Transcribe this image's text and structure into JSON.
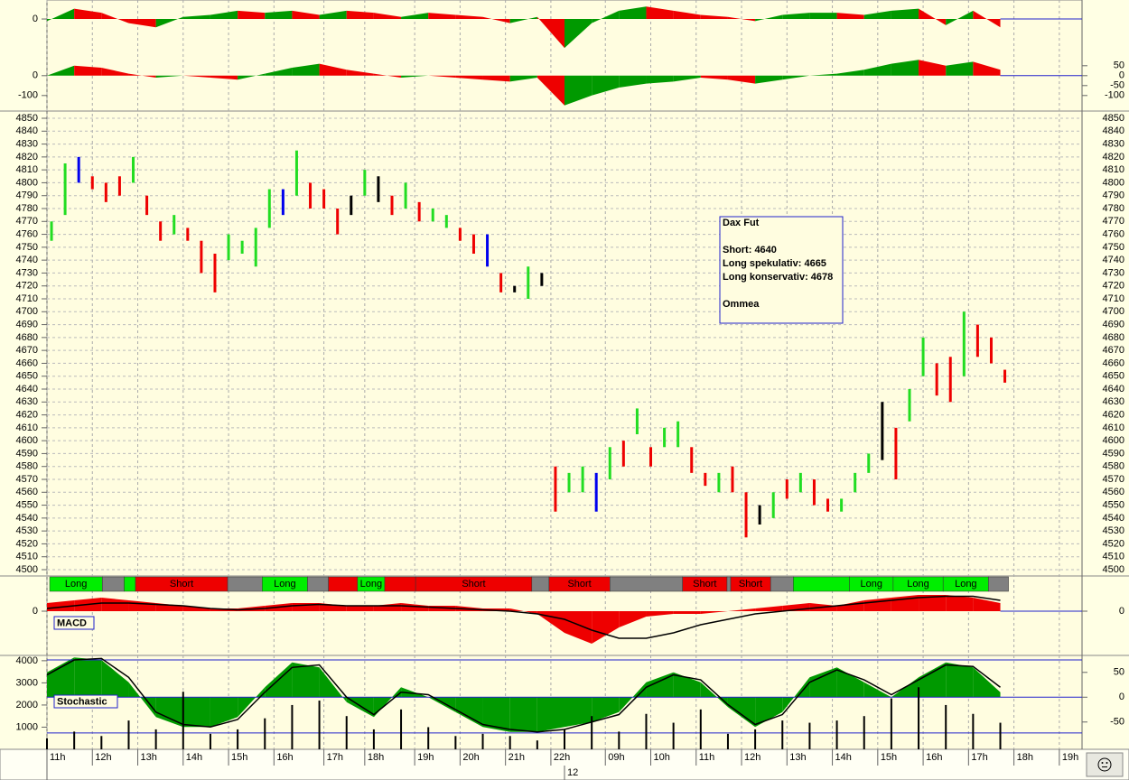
{
  "x_axis": {
    "xlim": [
      0,
      228
    ],
    "xticks": [
      {
        "value": 0,
        "label": "11h"
      },
      {
        "value": 10,
        "label": "12h"
      },
      {
        "value": 20,
        "label": "13h"
      },
      {
        "value": 30,
        "label": "14h"
      },
      {
        "value": 40,
        "label": "15h"
      },
      {
        "value": 50,
        "label": "16h"
      },
      {
        "value": 61,
        "label": "17h"
      },
      {
        "value": 70,
        "label": "18h"
      },
      {
        "value": 81,
        "label": "19h"
      },
      {
        "value": 91,
        "label": "20h"
      },
      {
        "value": 101,
        "label": "21h"
      },
      {
        "value": 111,
        "label": "22h"
      },
      {
        "value": 123,
        "label": "09h"
      },
      {
        "value": 133,
        "label": "10h"
      },
      {
        "value": 143,
        "label": "11h"
      },
      {
        "value": 153,
        "label": "12h"
      },
      {
        "value": 163,
        "label": "13h"
      },
      {
        "value": 173,
        "label": "14h"
      },
      {
        "value": 183,
        "label": "15h"
      },
      {
        "value": 193,
        "label": "16h"
      },
      {
        "value": 203,
        "label": "17h"
      },
      {
        "value": 213,
        "label": "18h"
      },
      {
        "value": 223,
        "label": "19h"
      }
    ],
    "date_ticks": [
      {
        "value": 114,
        "label": "12"
      }
    ],
    "x": [
      0,
      6,
      12,
      18,
      24,
      30,
      36,
      42,
      48,
      54,
      60,
      66,
      72,
      78,
      84,
      90,
      96,
      102,
      108,
      114,
      120,
      126,
      132,
      138,
      144,
      150,
      156,
      162,
      168,
      174,
      180,
      186,
      192,
      198,
      204,
      210
    ]
  },
  "chart_data": [
    {
      "type": "oscillator",
      "ylim": [
        -170,
        70
      ],
      "yticks": [
        0
      ],
      "values": [
        -10,
        50,
        30,
        -20,
        -40,
        10,
        20,
        40,
        30,
        40,
        20,
        40,
        30,
        10,
        30,
        20,
        10,
        -20,
        10,
        -140,
        -20,
        40,
        60,
        40,
        20,
        10,
        -10,
        20,
        30,
        30,
        20,
        40,
        50,
        -30,
        40,
        -40
      ]
    },
    {
      "type": "oscillator",
      "ylim": [
        -160,
        90
      ],
      "yticks": [
        0,
        -100
      ],
      "y2ticks": [
        50,
        0,
        -50,
        -100
      ],
      "values": [
        0,
        50,
        40,
        10,
        -10,
        0,
        -10,
        -20,
        10,
        40,
        60,
        30,
        10,
        -10,
        0,
        -10,
        -20,
        -30,
        -10,
        -150,
        -100,
        -60,
        -40,
        -30,
        -10,
        -20,
        -40,
        -20,
        0,
        10,
        30,
        60,
        80,
        50,
        70,
        30
      ]
    },
    {
      "type": "range-bar",
      "ylim": [
        4500,
        4850
      ],
      "yticks": [
        4500,
        4510,
        4520,
        4530,
        4540,
        4550,
        4560,
        4570,
        4580,
        4590,
        4600,
        4610,
        4620,
        4630,
        4640,
        4650,
        4660,
        4670,
        4680,
        4690,
        4700,
        4710,
        4720,
        4730,
        4740,
        4750,
        4760,
        4770,
        4780,
        4790,
        4800,
        4810,
        4820,
        4830,
        4840,
        4850
      ],
      "x": [
        1,
        4,
        7,
        10,
        13,
        16,
        19,
        22,
        25,
        28,
        31,
        34,
        37,
        40,
        43,
        46,
        49,
        52,
        55,
        58,
        61,
        64,
        67,
        70,
        73,
        76,
        79,
        82,
        85,
        88,
        91,
        94,
        97,
        100,
        103,
        106,
        109,
        112,
        115,
        118,
        121,
        124,
        127,
        130,
        133,
        136,
        139,
        142,
        145,
        148,
        151,
        154,
        157,
        160,
        163,
        166,
        169,
        172,
        175,
        178,
        181,
        184,
        187,
        190,
        193,
        196,
        199,
        202,
        205,
        208,
        211
      ],
      "low": [
        4755,
        4775,
        4800,
        4795,
        4785,
        4790,
        4800,
        4775,
        4755,
        4760,
        4755,
        4730,
        4715,
        4740,
        4745,
        4735,
        4765,
        4775,
        4790,
        4780,
        4780,
        4760,
        4775,
        4790,
        4785,
        4775,
        4780,
        4770,
        4770,
        4765,
        4755,
        4745,
        4735,
        4715,
        4715,
        4710,
        4720,
        4545,
        4560,
        4560,
        4545,
        4570,
        4580,
        4605,
        4580,
        4595,
        4595,
        4575,
        4565,
        4560,
        4560,
        4525,
        4535,
        4540,
        4555,
        4560,
        4550,
        4545,
        4545,
        4560,
        4575,
        4585,
        4570,
        4615,
        4650,
        4635,
        4630,
        4650,
        4665,
        4660,
        4645
      ],
      "high": [
        4770,
        4815,
        4820,
        4805,
        4800,
        4805,
        4820,
        4790,
        4770,
        4775,
        4765,
        4755,
        4745,
        4760,
        4755,
        4765,
        4795,
        4795,
        4825,
        4800,
        4795,
        4780,
        4790,
        4810,
        4805,
        4790,
        4800,
        4785,
        4780,
        4775,
        4765,
        4760,
        4760,
        4730,
        4720,
        4735,
        4730,
        4580,
        4575,
        4580,
        4575,
        4595,
        4600,
        4625,
        4595,
        4610,
        4615,
        4595,
        4575,
        4575,
        4580,
        4560,
        4550,
        4560,
        4570,
        4575,
        4570,
        4555,
        4555,
        4575,
        4590,
        4630,
        4610,
        4640,
        4680,
        4660,
        4665,
        4700,
        4690,
        4680,
        4655
      ],
      "colors": [
        "#22dd22",
        "#22dd22",
        "#0000ee",
        "#ee0000",
        "#ee0000",
        "#ee0000",
        "#22dd22",
        "#ee0000",
        "#ee0000",
        "#22dd22",
        "#ee0000",
        "#ee0000",
        "#ee0000",
        "#22dd22",
        "#22dd22",
        "#22dd22",
        "#22dd22",
        "#0000ee",
        "#22dd22",
        "#ee0000",
        "#ee0000",
        "#ee0000",
        "#000000",
        "#22dd22",
        "#000000",
        "#ee0000",
        "#22dd22",
        "#ee0000",
        "#22dd22",
        "#22dd22",
        "#ee0000",
        "#ee0000",
        "#0000ee",
        "#ee0000",
        "#000000",
        "#22dd22",
        "#000000",
        "#ee0000",
        "#22dd22",
        "#22dd22",
        "#0000ee",
        "#22dd22",
        "#ee0000",
        "#22dd22",
        "#ee0000",
        "#22dd22",
        "#22dd22",
        "#ee0000",
        "#ee0000",
        "#22dd22",
        "#ee0000",
        "#ee0000",
        "#000000",
        "#22dd22",
        "#ee0000",
        "#22dd22",
        "#ee0000",
        "#ee0000",
        "#22dd22",
        "#22dd22",
        "#22dd22",
        "#000000",
        "#ee0000",
        "#22dd22",
        "#22dd22",
        "#ee0000",
        "#ee0000",
        "#22dd22",
        "#ee0000",
        "#ee0000",
        "#ee0000"
      ],
      "annotation": [
        "Dax Fut",
        "Short: 4640",
        "Long spekulativ: 4665",
        "Long konservativ: 4678",
        "Ommea"
      ]
    },
    {
      "type": "signal",
      "segments": [
        {
          "start": 0.6,
          "end": 12.2,
          "color": "#00ee00",
          "label": "Long"
        },
        {
          "start": 12.2,
          "end": 17,
          "color": "#808080"
        },
        {
          "start": 17,
          "end": 19.5,
          "color": "#00ee00"
        },
        {
          "start": 19.5,
          "end": 39.8,
          "color": "#ee0000",
          "label": "Short"
        },
        {
          "start": 39.8,
          "end": 47.4,
          "color": "#808080"
        },
        {
          "start": 47.4,
          "end": 57.4,
          "color": "#00ee00",
          "label": "Long"
        },
        {
          "start": 57.4,
          "end": 62,
          "color": "#808080"
        },
        {
          "start": 62,
          "end": 68.4,
          "color": "#ee0000"
        },
        {
          "start": 68.4,
          "end": 74.4,
          "color": "#00ee00",
          "label": "Long"
        },
        {
          "start": 74.4,
          "end": 81.2,
          "color": "#ee0000"
        },
        {
          "start": 81.2,
          "end": 106.8,
          "color": "#ee0000",
          "label": "Short"
        },
        {
          "start": 106.8,
          "end": 110.6,
          "color": "#808080"
        },
        {
          "start": 110.6,
          "end": 124,
          "color": "#ee0000",
          "label": "Short"
        },
        {
          "start": 124,
          "end": 140,
          "color": "#808080"
        },
        {
          "start": 140,
          "end": 149.8,
          "color": "#ee0000",
          "label": "Short"
        },
        {
          "start": 149.8,
          "end": 150.6,
          "color": "#808080"
        },
        {
          "start": 150.6,
          "end": 159.4,
          "color": "#ee0000",
          "label": "Short"
        },
        {
          "start": 159.4,
          "end": 164.4,
          "color": "#808080"
        },
        {
          "start": 164.4,
          "end": 176.8,
          "color": "#00ee00"
        },
        {
          "start": 176.8,
          "end": 186.4,
          "color": "#00ee00",
          "label": "Long"
        },
        {
          "start": 186.4,
          "end": 197.4,
          "color": "#00ee00",
          "label": "Long"
        },
        {
          "start": 197.4,
          "end": 207.4,
          "color": "#00ee00",
          "label": "Long"
        },
        {
          "start": 207.4,
          "end": 211.8,
          "color": "#808080"
        }
      ]
    },
    {
      "type": "macd",
      "title": "MACD",
      "ylim": [
        -160,
        70
      ],
      "yticks": [
        0
      ],
      "y2ticks": [
        0
      ],
      "histogram": [
        30,
        40,
        50,
        40,
        30,
        20,
        10,
        10,
        20,
        30,
        30,
        20,
        20,
        30,
        20,
        20,
        10,
        10,
        -10,
        -80,
        -120,
        -60,
        -20,
        -10,
        -10,
        0,
        10,
        20,
        30,
        20,
        40,
        50,
        60,
        60,
        50,
        30
      ],
      "line": [
        10,
        20,
        30,
        30,
        25,
        20,
        10,
        5,
        10,
        20,
        25,
        20,
        20,
        20,
        15,
        10,
        5,
        0,
        -10,
        -30,
        -70,
        -100,
        -100,
        -80,
        -50,
        -30,
        -10,
        0,
        10,
        20,
        30,
        40,
        50,
        55,
        55,
        40
      ]
    },
    {
      "type": "stochastic",
      "title": "Stochastic",
      "ylim": [
        0,
        4280
      ],
      "yticks": [
        1000,
        2000,
        3000,
        4000
      ],
      "y2lim": [
        -105,
        86
      ],
      "y2ticks": [
        50,
        0,
        -50
      ],
      "levels": [
        75,
        0,
        -72
      ],
      "volume": [
        500,
        800,
        600,
        1300,
        900,
        2600,
        700,
        900,
        1400,
        2000,
        2200,
        1500,
        900,
        1800,
        1000,
        600,
        700,
        600,
        400,
        900,
        1500,
        800,
        1600,
        1200,
        1800,
        700,
        900,
        1300,
        1200,
        1300,
        1500,
        2300,
        2800,
        2000,
        1600,
        1200
      ],
      "area": [
        50,
        80,
        75,
        30,
        -40,
        -60,
        -60,
        -40,
        20,
        70,
        60,
        -10,
        -40,
        20,
        0,
        -30,
        -60,
        -70,
        -70,
        -60,
        -50,
        -30,
        30,
        50,
        30,
        -20,
        -60,
        -30,
        40,
        60,
        30,
        0,
        40,
        70,
        60,
        10
      ],
      "line": [
        45,
        75,
        78,
        40,
        -30,
        -55,
        -60,
        -45,
        10,
        60,
        65,
        0,
        -35,
        10,
        5,
        -25,
        -55,
        -65,
        -70,
        -65,
        -50,
        -35,
        20,
        45,
        35,
        -15,
        -55,
        -35,
        30,
        55,
        35,
        5,
        35,
        65,
        62,
        20
      ]
    }
  ]
}
